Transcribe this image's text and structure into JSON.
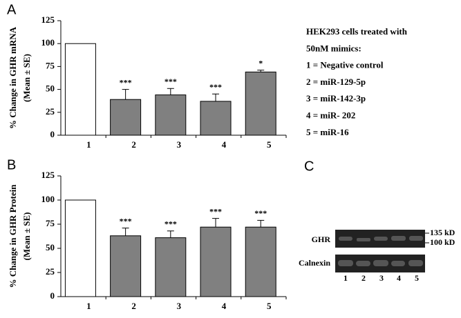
{
  "chart_data": [
    {
      "type": "bar",
      "panel": "A",
      "ylabel_lines": [
        "% Change in GHR mRNA",
        "(Mean ± SE)"
      ],
      "categories": [
        "1",
        "2",
        "3",
        "4",
        "5"
      ],
      "values": [
        100,
        39,
        44,
        37,
        69
      ],
      "errors": [
        0,
        11,
        7,
        8,
        2
      ],
      "significance": [
        null,
        "***",
        "***",
        "***",
        "*"
      ],
      "colors": [
        "#ffffff",
        "#808080",
        "#808080",
        "#808080",
        "#808080"
      ],
      "ylim": [
        0,
        125
      ],
      "yticks": [
        0,
        25,
        50,
        75,
        100,
        125
      ]
    },
    {
      "type": "bar",
      "panel": "B",
      "ylabel_lines": [
        "% Change in GHR Protein",
        "(Mean ± SE)"
      ],
      "categories": [
        "1",
        "2",
        "3",
        "4",
        "5"
      ],
      "values": [
        100,
        63,
        61,
        72,
        72
      ],
      "errors": [
        0,
        8,
        7,
        9,
        7
      ],
      "significance": [
        null,
        "***",
        "***",
        "***",
        "***"
      ],
      "colors": [
        "#ffffff",
        "#808080",
        "#808080",
        "#808080",
        "#808080"
      ],
      "ylim": [
        0,
        125
      ],
      "yticks": [
        0,
        25,
        50,
        75,
        100,
        125
      ]
    }
  ],
  "legend_note": [
    "HEK293 cells treated with",
    "50nM mimics:",
    "1 = Negative control",
    "2 = miR-129-5p",
    "3 = miR-142-3p",
    "4 = miR- 202",
    "5 = miR-16"
  ],
  "blot": {
    "panel": "C",
    "bands": [
      "GHR",
      "Calnexin"
    ],
    "markers": [
      "135 kD",
      "100 kD"
    ],
    "lanes": [
      "1",
      "2",
      "3",
      "4",
      "5"
    ]
  }
}
